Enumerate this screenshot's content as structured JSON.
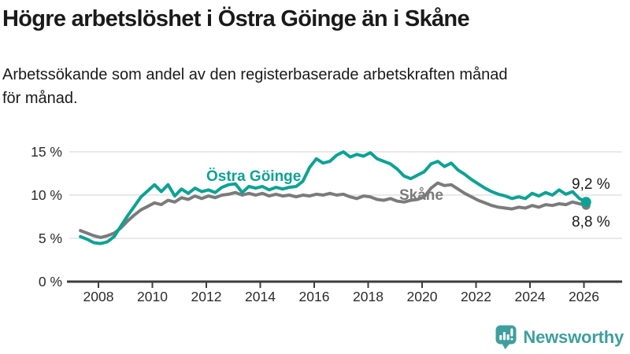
{
  "header": {
    "title": "Högre arbetslöshet i Östra Göinge än i Skåne",
    "subtitle_line1": "Arbetssökande som andel av den registerbaserade arbetskraften månad",
    "subtitle_line2": "för månad."
  },
  "chart_data": {
    "type": "line",
    "title": "Högre arbetslöshet i Östra Göinge än i Skåne",
    "subtitle": "Arbetssökande som andel av den registerbaserade arbetskraften månad för månad.",
    "unit": "%",
    "grid": "horizontal",
    "legend_position": "inline-labels",
    "x_start": 2007.33,
    "x_step_years": 0.25,
    "x_tick_years": [
      2008,
      2010,
      2012,
      2014,
      2016,
      2018,
      2020,
      2022,
      2024,
      2026
    ],
    "y_ticks": [
      0,
      5,
      10,
      15
    ],
    "y_tick_suffix": " %",
    "ylim": [
      0,
      16
    ],
    "axis_color": "#3c3c3c",
    "gridline_color": "#dcdcdc",
    "label_color": "#1a1a1a",
    "series": [
      {
        "id": "skane",
        "name": "Skåne",
        "color": "#7b7b7b",
        "end_label": "8,8 %",
        "last_value": 8.8,
        "values": [
          5.9,
          5.6,
          5.3,
          5.1,
          5.3,
          5.6,
          6.2,
          7.0,
          7.7,
          8.3,
          8.7,
          9.1,
          8.9,
          9.4,
          9.2,
          9.7,
          9.5,
          9.9,
          9.6,
          9.9,
          9.7,
          10.0,
          10.1,
          10.3,
          10.0,
          10.2,
          10.0,
          10.2,
          9.9,
          10.1,
          9.9,
          10.0,
          9.8,
          10.0,
          9.9,
          10.1,
          10.0,
          10.2,
          10.0,
          10.1,
          9.8,
          9.6,
          9.9,
          9.8,
          9.5,
          9.4,
          9.6,
          9.3,
          9.2,
          9.4,
          9.5,
          9.8,
          10.8,
          11.4,
          11.1,
          11.2,
          10.7,
          10.2,
          9.8,
          9.4,
          9.1,
          8.8,
          8.6,
          8.5,
          8.4,
          8.6,
          8.5,
          8.8,
          8.6,
          8.9,
          8.8,
          9.0,
          8.9,
          9.2,
          9.0,
          8.8
        ]
      },
      {
        "id": "ostra-goinge",
        "name": "Östra Göinge",
        "color": "#0da294",
        "end_label": "9,2 %",
        "last_value": 9.2,
        "values": [
          5.2,
          4.9,
          4.5,
          4.4,
          4.6,
          5.2,
          6.4,
          7.6,
          8.7,
          9.8,
          10.5,
          11.2,
          10.4,
          11.2,
          9.9,
          10.7,
          10.2,
          10.8,
          10.4,
          10.6,
          10.3,
          10.9,
          11.2,
          11.3,
          10.3,
          11.0,
          10.8,
          11.0,
          10.6,
          10.9,
          10.7,
          10.9,
          11.0,
          11.6,
          13.2,
          14.2,
          13.7,
          13.9,
          14.6,
          15.0,
          14.4,
          14.7,
          14.5,
          14.9,
          14.2,
          13.9,
          13.6,
          13.0,
          12.2,
          11.9,
          12.3,
          12.7,
          13.6,
          13.9,
          13.3,
          13.7,
          12.9,
          12.4,
          11.8,
          11.3,
          10.8,
          10.4,
          10.1,
          9.9,
          9.6,
          9.8,
          9.6,
          10.2,
          9.9,
          10.3,
          10.0,
          10.6,
          10.1,
          10.4,
          9.6,
          9.2
        ]
      }
    ]
  },
  "branding": {
    "logo_text": "Newsworthy",
    "logo_color": "#3f9f9e",
    "logo_icon": "speech-bubble-bar-chart-icon"
  }
}
